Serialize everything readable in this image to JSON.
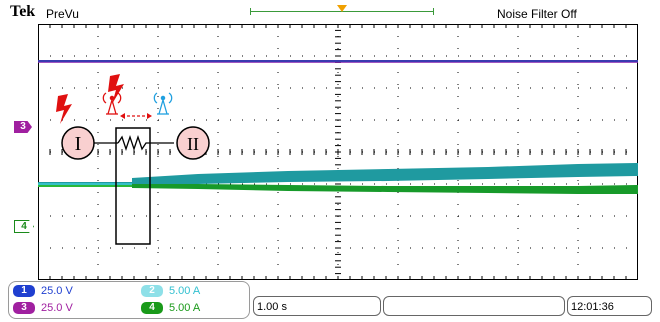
{
  "header": {
    "brand": "Tek",
    "acquisition_state": "PreVu",
    "noise_filter": "Noise Filter Off",
    "trigger_marker_color": "#f0a000"
  },
  "markers": {
    "ch3": "3",
    "ch4": "4"
  },
  "diagram": {
    "node_left": "I",
    "node_right": "II"
  },
  "channels": [
    {
      "num": "1",
      "scale": "25.0 V",
      "color": "#1f3fd0"
    },
    {
      "num": "3",
      "scale": "25.0 V",
      "color": "#a020a0"
    },
    {
      "num": "2",
      "scale": "5.00 A",
      "color": "#33c0d0"
    },
    {
      "num": "4",
      "scale": "5.00 A",
      "color": "#1a9a1a"
    }
  ],
  "timebase": "1.00 s",
  "clock": "12:01:36"
}
